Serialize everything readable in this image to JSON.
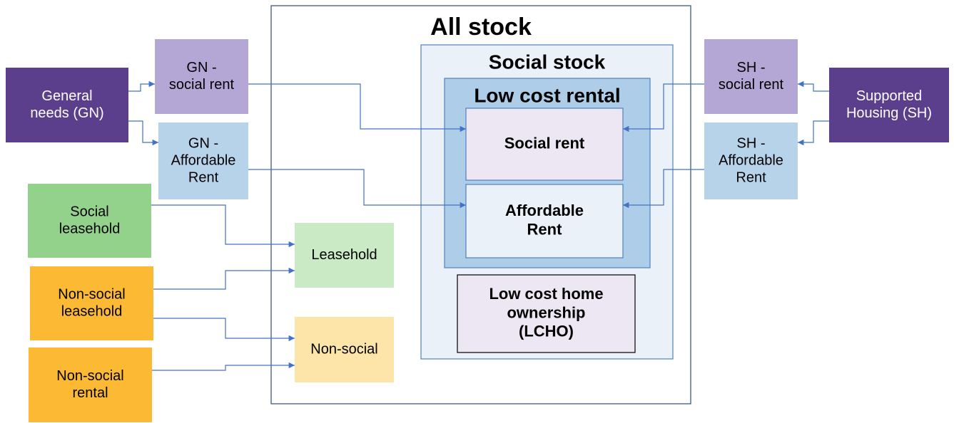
{
  "nodes": [
    {
      "lines": [
        "All stock"
      ]
    },
    {
      "lines": [
        "Social stock"
      ]
    },
    {
      "lines": [
        "Low cost rental"
      ]
    },
    {
      "lines": [
        "Social rent"
      ]
    },
    {
      "lines": [
        "Affordable",
        "Rent"
      ]
    },
    {
      "lines": [
        "Low cost home",
        "ownership",
        "(LCHO)"
      ]
    },
    {
      "lines": [
        "Leasehold"
      ]
    },
    {
      "lines": [
        "Non-social"
      ]
    },
    {
      "lines": [
        "General",
        "needs (GN)"
      ]
    },
    {
      "lines": [
        "GN -",
        "social rent"
      ]
    },
    {
      "lines": [
        "GN -",
        "Affordable",
        "Rent"
      ]
    },
    {
      "lines": [
        "Social",
        "leasehold"
      ]
    },
    {
      "lines": [
        "Non-social",
        "leasehold"
      ]
    },
    {
      "lines": [
        "Non-social",
        "rental"
      ]
    },
    {
      "lines": [
        "SH -",
        "social rent"
      ]
    },
    {
      "lines": [
        "SH -",
        "Affordable",
        "Rent"
      ]
    },
    {
      "lines": [
        "Supported",
        "Housing (SH)"
      ]
    }
  ]
}
